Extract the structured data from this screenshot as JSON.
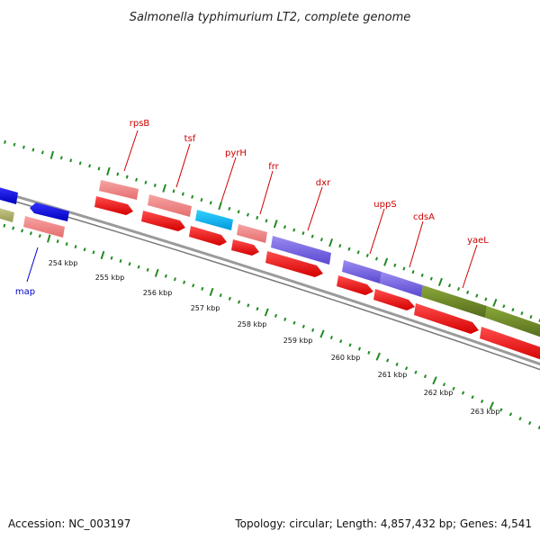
{
  "title": "Salmonella typhimurium LT2, complete genome",
  "footer": {
    "accession": "Accession: NC_003197",
    "topology": "Topology: circular; Length: 4,857,432 bp; Genes: 4,541"
  },
  "colors": {
    "cds_red": "#ff0000",
    "gene_pink": "#f08080",
    "trna_cyan": "#00bfff",
    "blue_gene": "#0000ee",
    "purple_gene": "#7b68ee",
    "olive_gene": "#6b8e23",
    "olive_light": "#b5b56b",
    "backbone": "#888888",
    "tick_green": "#228b22"
  },
  "gene_labels": [
    {
      "name": "rpsB",
      "color": "red"
    },
    {
      "name": "tsf",
      "color": "red"
    },
    {
      "name": "pyrH",
      "color": "red"
    },
    {
      "name": "frr",
      "color": "red"
    },
    {
      "name": "dxr",
      "color": "red"
    },
    {
      "name": "uppS",
      "color": "red"
    },
    {
      "name": "cdsA",
      "color": "red"
    },
    {
      "name": "yaeL",
      "color": "red"
    },
    {
      "name": "map",
      "color": "blue"
    }
  ],
  "kbp_labels": [
    "254 kbp",
    "255 kbp",
    "256 kbp",
    "257 kbp",
    "258 kbp",
    "259 kbp",
    "260 kbp",
    "261 kbp",
    "262 kbp",
    "263 kbp"
  ]
}
